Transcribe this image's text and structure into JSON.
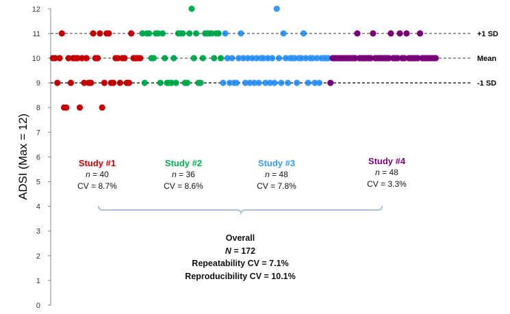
{
  "chart_data": {
    "type": "scatter",
    "title": "",
    "xlabel": "",
    "ylabel": "ADSI (Max = 12)",
    "ylim": [
      0,
      12
    ],
    "xlim": [
      0,
      173
    ],
    "yticks": [
      "0",
      "1",
      "2",
      "3",
      "4",
      "5",
      "6",
      "7",
      "8",
      "9",
      "10",
      "11",
      "12"
    ],
    "grid": false,
    "reference_lines": [
      {
        "label": "+1 SD",
        "y": 11,
        "color": "#7f7f7f"
      },
      {
        "label": "Mean",
        "y": 10,
        "color": "#7f7f7f"
      },
      {
        "label": "-1 SD",
        "y": 9,
        "color": "#000000"
      }
    ],
    "series": [
      {
        "name": "Study #1",
        "color": "#cc0000",
        "n_label": "n",
        "n_value": "= 40",
        "cv": "CV = 8.7%",
        "values": [
          10,
          10,
          9,
          10,
          11,
          8,
          8,
          10,
          9,
          10,
          10,
          10,
          8,
          10,
          9,
          10,
          9,
          9,
          11,
          10,
          10,
          11,
          8,
          9,
          11,
          11,
          9,
          9,
          10,
          10,
          9,
          10,
          10,
          9,
          9,
          11,
          10,
          10,
          10,
          10
        ]
      },
      {
        "name": "Study #2",
        "color": "#00b050",
        "n_label": "n",
        "n_value": "= 36",
        "cv": "CV = 8.6%",
        "values": [
          11,
          9,
          11,
          11,
          10,
          10,
          11,
          11,
          9,
          11,
          10,
          9,
          9,
          9,
          10,
          9,
          11,
          11,
          11,
          9,
          9,
          11,
          12,
          10,
          11,
          9,
          9,
          10,
          11,
          11,
          11,
          11,
          10,
          11,
          11,
          10
        ]
      },
      {
        "name": "Study #3",
        "color": "#3399ff",
        "n_label": "n",
        "n_value": "= 48",
        "cv": "CV = 7.8%",
        "values": [
          9,
          11,
          10,
          9,
          10,
          9,
          9,
          10,
          11,
          10,
          9,
          10,
          9,
          10,
          9,
          10,
          9,
          10,
          10,
          9,
          10,
          9,
          10,
          9,
          12,
          10,
          9,
          11,
          10,
          9,
          10,
          10,
          10,
          9,
          10,
          10,
          11,
          10,
          9,
          10,
          10,
          9,
          10,
          9,
          10,
          10,
          10,
          10
        ]
      },
      {
        "name": "Study #4",
        "color": "#7f007f",
        "n_label": "n",
        "n_value": "= 48",
        "cv": "CV = 3.3%",
        "values": [
          9,
          10,
          10,
          10,
          10,
          10,
          10,
          10,
          10,
          10,
          10,
          10,
          11,
          10,
          10,
          10,
          10,
          10,
          10,
          11,
          10,
          10,
          10,
          10,
          10,
          10,
          10,
          11,
          10,
          10,
          10,
          11,
          10,
          10,
          11,
          10,
          10,
          10,
          10,
          10,
          11,
          10,
          10,
          10,
          10,
          10,
          10,
          10
        ]
      }
    ],
    "overall": {
      "title": "Overall",
      "n_label": "N",
      "n_value": "= 172",
      "repeatability": "Repeatability CV = 7.1%",
      "reproducibility": "Reproducibility CV = 10.1%"
    },
    "bracket_color": "#a9bfdc"
  }
}
